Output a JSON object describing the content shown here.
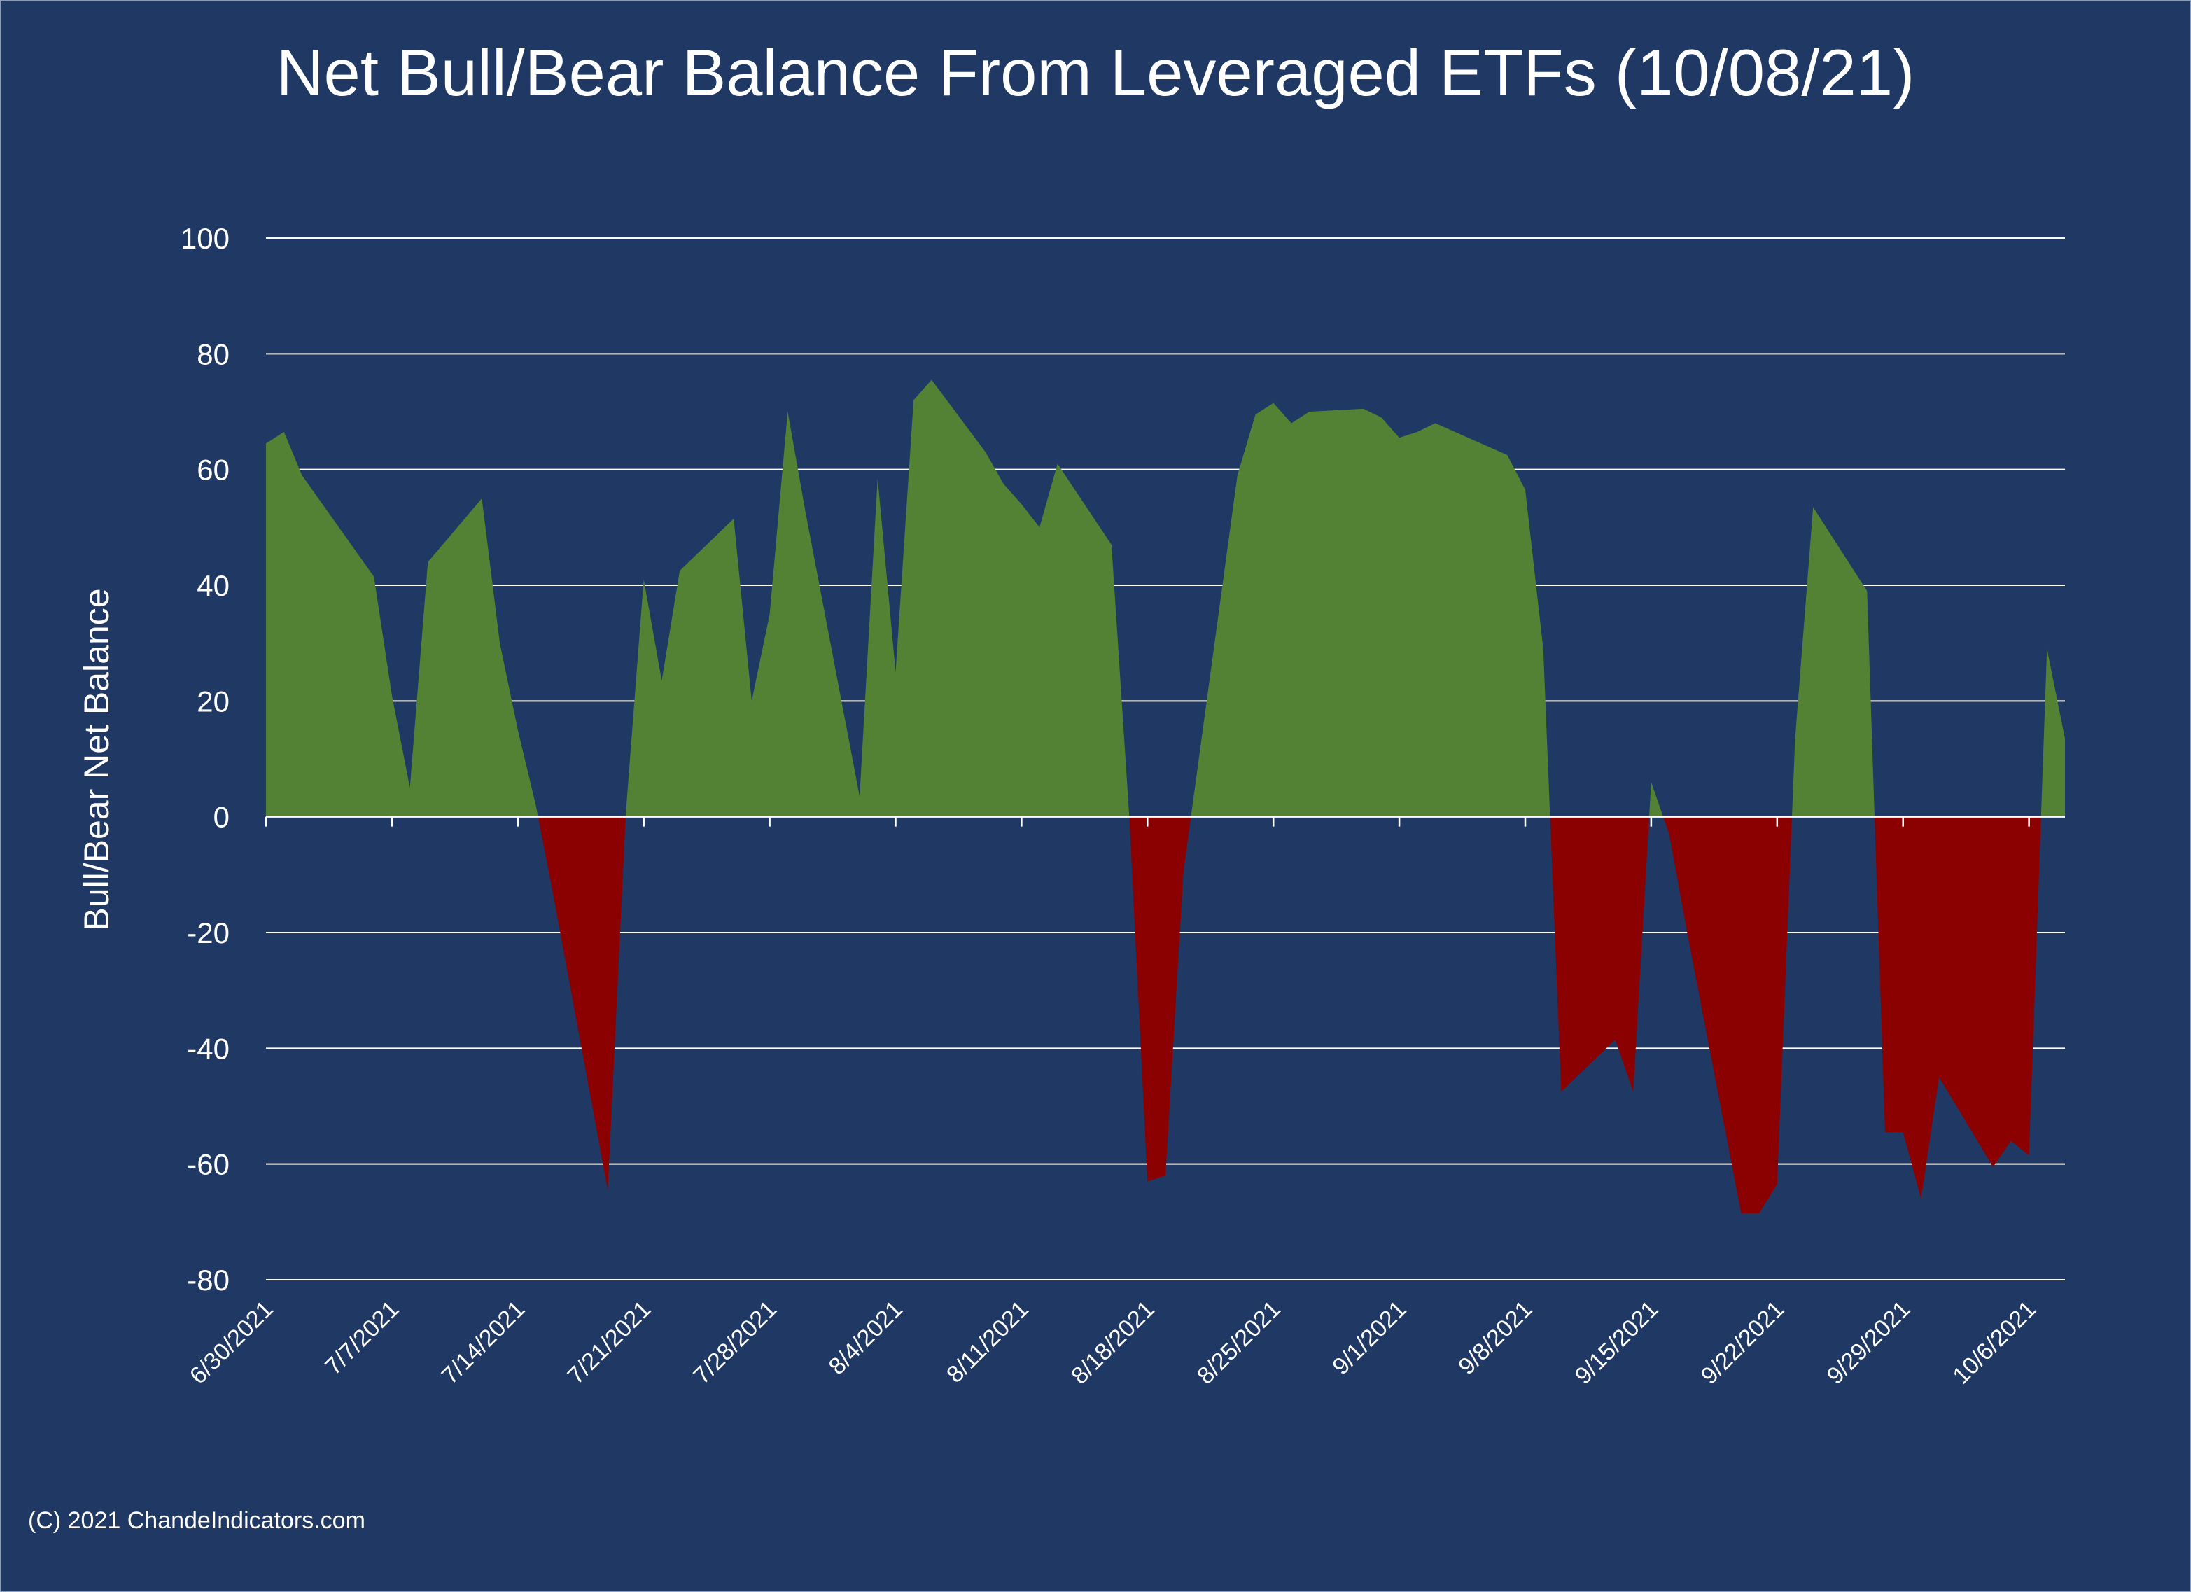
{
  "chart_data": {
    "type": "area",
    "title": "Net Bull/Bear Balance From Leveraged ETFs (10/08/21)",
    "xlabel": "",
    "ylabel": "Bull/Bear Net Balance",
    "ylim": [
      -80,
      100
    ],
    "yticks": [
      100,
      80,
      60,
      40,
      20,
      0,
      -20,
      -40,
      -60,
      -80
    ],
    "x_range": [
      "6/30/2021",
      "10/8/2021"
    ],
    "x_tick_labels": [
      "6/30/2021",
      "7/7/2021",
      "7/14/2021",
      "7/21/2021",
      "7/28/2021",
      "8/4/2021",
      "8/11/2021",
      "8/18/2021",
      "8/25/2021",
      "9/1/2021",
      "9/8/2021",
      "9/15/2021",
      "9/22/2021",
      "9/29/2021",
      "10/6/2021"
    ],
    "grid": true,
    "legend": "none",
    "colors": {
      "positive": "#548235",
      "negative": "#8b0000",
      "background": "#203864",
      "grid": "#ffffff"
    },
    "series": [
      {
        "points": [
          [
            "6/30/2021",
            64.5
          ],
          [
            "7/1/2021",
            66.5
          ],
          [
            "7/2/2021",
            59
          ],
          [
            "7/6/2021",
            41.5
          ],
          [
            "7/7/2021",
            21
          ],
          [
            "7/8/2021",
            5
          ],
          [
            "7/9/2021",
            44
          ],
          [
            "7/12/2021",
            55
          ],
          [
            "7/13/2021",
            30
          ],
          [
            "7/14/2021",
            15
          ],
          [
            "7/15/2021",
            2
          ],
          [
            "7/16/2021",
            -14
          ],
          [
            "7/19/2021",
            -64.5
          ],
          [
            "7/20/2021",
            0.5
          ],
          [
            "7/21/2021",
            41
          ],
          [
            "7/22/2021",
            23.5
          ],
          [
            "7/23/2021",
            42.5
          ],
          [
            "7/26/2021",
            51.5
          ],
          [
            "7/27/2021",
            20
          ],
          [
            "7/28/2021",
            35
          ],
          [
            "7/29/2021",
            70
          ],
          [
            "7/30/2021",
            52.5
          ],
          [
            "8/2/2021",
            3.5
          ],
          [
            "8/3/2021",
            58.5
          ],
          [
            "8/4/2021",
            25
          ],
          [
            "8/5/2021",
            72
          ],
          [
            "8/6/2021",
            75.5
          ],
          [
            "8/9/2021",
            63
          ],
          [
            "8/10/2021",
            57.5
          ],
          [
            "8/11/2021",
            54
          ],
          [
            "8/12/2021",
            50
          ],
          [
            "8/13/2021",
            61
          ],
          [
            "8/16/2021",
            47
          ],
          [
            "8/17/2021",
            -0.5
          ],
          [
            "8/18/2021",
            -63
          ],
          [
            "8/19/2021",
            -62
          ],
          [
            "8/20/2021",
            -9.5
          ],
          [
            "8/23/2021",
            59
          ],
          [
            "8/24/2021",
            69.5
          ],
          [
            "8/25/2021",
            71.5
          ],
          [
            "8/26/2021",
            68
          ],
          [
            "8/27/2021",
            70
          ],
          [
            "8/30/2021",
            70.5
          ],
          [
            "8/31/2021",
            69
          ],
          [
            "9/1/2021",
            65.5
          ],
          [
            "9/2/2021",
            66.5
          ],
          [
            "9/3/2021",
            68
          ],
          [
            "9/7/2021",
            62.5
          ],
          [
            "9/8/2021",
            56.5
          ],
          [
            "9/9/2021",
            29
          ],
          [
            "9/10/2021",
            -47.5
          ],
          [
            "9/13/2021",
            -38.5
          ],
          [
            "9/14/2021",
            -47.5
          ],
          [
            "9/15/2021",
            6
          ],
          [
            "9/16/2021",
            -3
          ],
          [
            "9/17/2021",
            -20
          ],
          [
            "9/20/2021",
            -68.5
          ],
          [
            "9/21/2021",
            -68.5
          ],
          [
            "9/22/2021",
            -63.5
          ],
          [
            "9/23/2021",
            13.5
          ],
          [
            "9/24/2021",
            53.5
          ],
          [
            "9/27/2021",
            39
          ],
          [
            "9/28/2021",
            -54.5
          ],
          [
            "9/29/2021",
            -54.5
          ],
          [
            "9/30/2021",
            -66
          ],
          [
            "10/1/2021",
            -45
          ],
          [
            "10/4/2021",
            -60.5
          ],
          [
            "10/5/2021",
            -56
          ],
          [
            "10/6/2021",
            -58.5
          ],
          [
            "10/7/2021",
            29
          ],
          [
            "10/8/2021",
            13.5
          ]
        ]
      }
    ]
  },
  "footer": {
    "copyright": "(C) 2021 ChandeIndicators.com"
  }
}
